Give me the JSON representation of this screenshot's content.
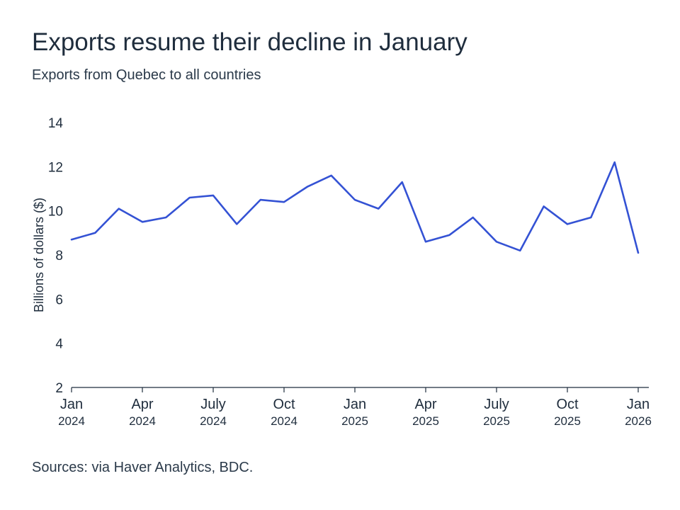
{
  "colors": {
    "line": "#3452d4",
    "axis": "#1f2d3d",
    "text": "#1f2d3d"
  },
  "chart_data": {
    "type": "line",
    "title": "Exports resume their decline in January",
    "subtitle": "Exports from Quebec to all countries",
    "ylabel": "Billions of dollars ($)",
    "xlabel": "",
    "ylim": [
      2,
      14
    ],
    "yticks": [
      2,
      4,
      6,
      8,
      10,
      12,
      14
    ],
    "grid": false,
    "source": "Sources: via Haver Analytics, BDC.",
    "x": [
      "2024-01",
      "2024-02",
      "2024-03",
      "2024-04",
      "2024-05",
      "2024-06",
      "2024-07",
      "2024-08",
      "2024-09",
      "2024-10",
      "2024-11",
      "2024-12",
      "2025-01",
      "2025-02",
      "2025-03",
      "2025-04",
      "2025-05",
      "2025-06",
      "2025-07",
      "2025-08",
      "2025-09",
      "2025-10",
      "2025-11",
      "2025-12",
      "2026-01"
    ],
    "xticks": [
      {
        "month": "Jan",
        "year": "2024",
        "x": "2024-01"
      },
      {
        "month": "Apr",
        "year": "2024",
        "x": "2024-04"
      },
      {
        "month": "July",
        "year": "2024",
        "x": "2024-07"
      },
      {
        "month": "Oct",
        "year": "2024",
        "x": "2024-10"
      },
      {
        "month": "Jan",
        "year": "2025",
        "x": "2025-01"
      },
      {
        "month": "Apr",
        "year": "2025",
        "x": "2025-04"
      },
      {
        "month": "July",
        "year": "2025",
        "x": "2025-07"
      },
      {
        "month": "Oct",
        "year": "2025",
        "x": "2025-10"
      },
      {
        "month": "Jan",
        "year": "2026",
        "x": "2026-01"
      }
    ],
    "series": [
      {
        "values": [
          8.7,
          9.0,
          10.1,
          9.5,
          9.7,
          10.6,
          10.7,
          9.4,
          10.5,
          10.4,
          11.1,
          11.6,
          10.5,
          10.1,
          11.3,
          8.6,
          8.9,
          9.7,
          8.6,
          8.2,
          10.2,
          9.4,
          9.7,
          12.2,
          8.1
        ]
      }
    ]
  }
}
